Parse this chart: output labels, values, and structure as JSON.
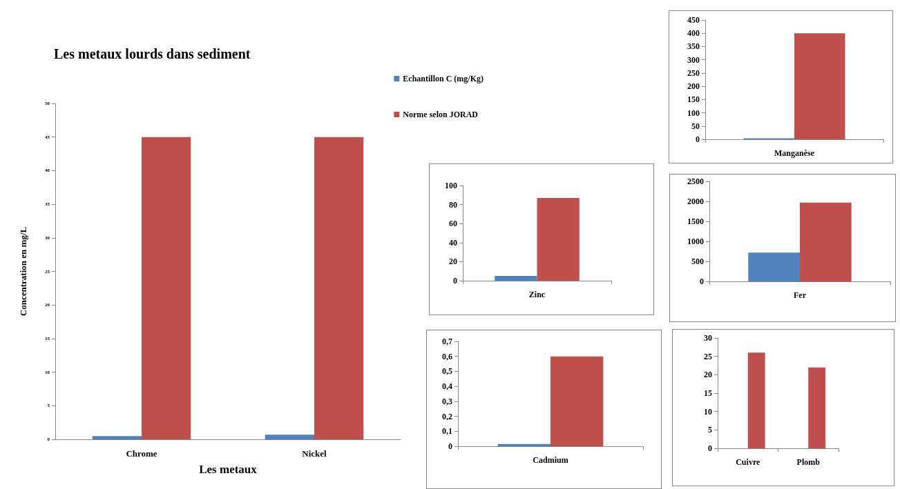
{
  "chart_data": [
    {
      "type": "bar",
      "title": "Les metaux lourds dans sediment",
      "xlabel": "Les metaux",
      "ylabel": "Concentration en mg/L",
      "categories": [
        "Chrome",
        "Nickel"
      ],
      "legend": "top right",
      "series": [
        {
          "name": "Echantillon C (mg/Kg)",
          "color": "#4f81bd",
          "values": [
            0.5,
            0.7
          ]
        },
        {
          "name": "Norme selon JORAD",
          "color": "#c0504d",
          "values": [
            45,
            45
          ]
        }
      ],
      "ylim": [
        0,
        50
      ],
      "yticks": [
        0,
        5,
        10,
        15,
        20,
        25,
        30,
        35,
        40,
        45,
        50
      ]
    },
    {
      "type": "bar",
      "categories": [
        "Manganèse"
      ],
      "series": [
        {
          "color": "#4f81bd",
          "values": [
            4
          ]
        },
        {
          "color": "#c0504d",
          "values": [
            400
          ]
        }
      ],
      "ylim": [
        0,
        450
      ],
      "yticks": [
        0,
        50,
        100,
        150,
        200,
        250,
        300,
        350,
        400,
        450
      ]
    },
    {
      "type": "bar",
      "categories": [
        "Zinc"
      ],
      "series": [
        {
          "color": "#4f81bd",
          "values": [
            5
          ]
        },
        {
          "color": "#c0504d",
          "values": [
            87
          ]
        }
      ],
      "ylim": [
        0,
        100
      ],
      "yticks": [
        0,
        20,
        40,
        60,
        80,
        100
      ]
    },
    {
      "type": "bar",
      "categories": [
        "Fer"
      ],
      "series": [
        {
          "color": "#4f81bd",
          "values": [
            720
          ]
        },
        {
          "color": "#c0504d",
          "values": [
            1970
          ]
        }
      ],
      "ylim": [
        0,
        2500
      ],
      "yticks": [
        0,
        500,
        1000,
        1500,
        2000,
        2500
      ]
    },
    {
      "type": "bar",
      "categories": [
        "Cadmium"
      ],
      "series": [
        {
          "color": "#4f81bd",
          "values": [
            0.015
          ]
        },
        {
          "color": "#c0504d",
          "values": [
            0.6
          ]
        }
      ],
      "ylim": [
        0,
        0.7
      ],
      "yticks": [
        0,
        {
          "value": 0.1,
          "label": "0,1"
        },
        {
          "value": 0.2,
          "label": "0,2"
        },
        {
          "value": 0.3,
          "label": "0,3"
        },
        {
          "value": 0.4,
          "label": "0,4"
        },
        {
          "value": 0.5,
          "label": "0,5"
        },
        {
          "value": 0.6,
          "label": "0,6"
        },
        {
          "value": 0.7,
          "label": "0,7"
        }
      ]
    },
    {
      "type": "bar",
      "categories": [
        "Cuivre",
        "Plomb"
      ],
      "series": [
        {
          "color": "#4f81bd",
          "values": [
            null,
            null
          ]
        },
        {
          "color": "#c0504d",
          "values": [
            26,
            22
          ]
        }
      ],
      "ylim": [
        0,
        30
      ],
      "yticks": [
        0,
        5,
        10,
        15,
        20,
        25,
        30
      ]
    }
  ]
}
